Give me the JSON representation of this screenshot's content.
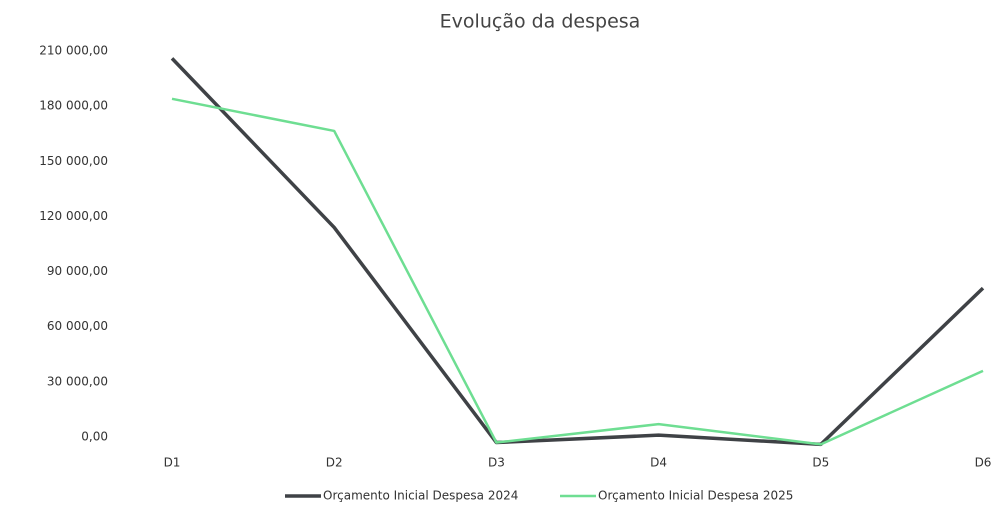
{
  "chart_data": {
    "type": "line",
    "title": "Evolução da despesa",
    "categories": [
      "D1",
      "D2",
      "D3",
      "D4",
      "D5",
      "D6"
    ],
    "series": [
      {
        "name": "Orçamento Inicial Despesa 2024",
        "color": "#3f4246",
        "values": [
          206000,
          114000,
          -3000,
          1000,
          -4000,
          81000
        ]
      },
      {
        "name": "Orçamento Inicial Despesa 2025",
        "color": "#6ede92",
        "values": [
          184000,
          166500,
          -3000,
          7000,
          -4000,
          36000
        ]
      }
    ],
    "ylim": [
      -15000,
      210000
    ],
    "yticks": [
      {
        "value": 0,
        "label": "0,00"
      },
      {
        "value": 30000,
        "label": "30 000,00"
      },
      {
        "value": 60000,
        "label": "60 000,00"
      },
      {
        "value": 90000,
        "label": "90 000,00"
      },
      {
        "value": 120000,
        "label": "120 000,00"
      },
      {
        "value": 150000,
        "label": "150 000,00"
      },
      {
        "value": 180000,
        "label": "180 000,00"
      },
      {
        "value": 210000,
        "label": "210 000,00"
      }
    ],
    "grid": false,
    "legend": "bottom"
  }
}
